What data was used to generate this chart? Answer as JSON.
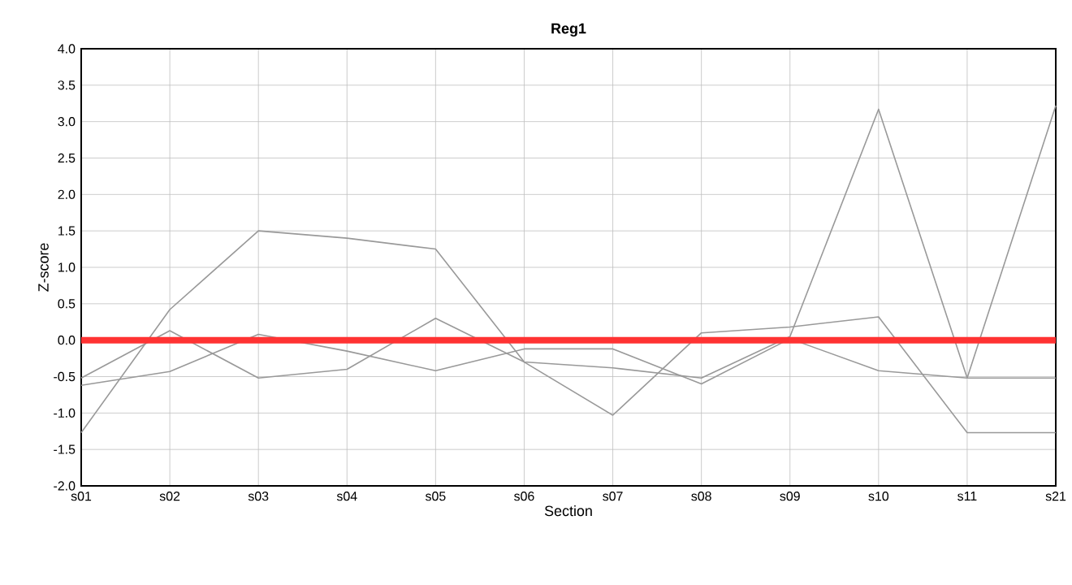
{
  "chart_data": {
    "type": "line",
    "title": "Reg1",
    "xlabel": "Section",
    "ylabel": "Z-score",
    "categories": [
      "s01",
      "s02",
      "s03",
      "s04",
      "s05",
      "s06",
      "s07",
      "s08",
      "s09",
      "s10",
      "s11",
      "s21"
    ],
    "series": [
      {
        "color": "#999999",
        "values": [
          -1.27,
          0.42,
          1.5,
          1.4,
          1.25,
          -0.3,
          -1.03,
          0.1,
          0.18,
          0.32,
          -1.27,
          -1.27
        ]
      },
      {
        "color": "#999999",
        "values": [
          -0.52,
          0.13,
          -0.52,
          -0.4,
          0.3,
          -0.3,
          -0.38,
          -0.52,
          0.05,
          3.17,
          -0.52,
          3.22
        ]
      },
      {
        "color": "#999999",
        "values": [
          -0.62,
          -0.43,
          0.08,
          -0.15,
          -0.42,
          -0.12,
          -0.12,
          -0.6,
          0.02,
          -0.42,
          -0.52,
          -0.52
        ]
      }
    ],
    "ylim": [
      -2,
      4
    ],
    "yticks": [
      {
        "value": -2,
        "label": "-2.0"
      },
      {
        "value": -1.5,
        "label": "-1.5"
      },
      {
        "value": -1,
        "label": "-1.0"
      },
      {
        "value": -0.5,
        "label": "-0.5"
      },
      {
        "value": 0,
        "label": "0.0"
      },
      {
        "value": 0.5,
        "label": "0.5"
      },
      {
        "value": 1,
        "label": "1.0"
      },
      {
        "value": 1.5,
        "label": "1.5"
      },
      {
        "value": 2,
        "label": "2.0"
      },
      {
        "value": 2.5,
        "label": "2.5"
      },
      {
        "value": 3,
        "label": "3.0"
      },
      {
        "value": 3.5,
        "label": "3.5"
      },
      {
        "value": 4,
        "label": "4.0"
      }
    ],
    "ref_lines": [
      {
        "axis": "y",
        "value": 0,
        "color": "#ff3333"
      }
    ],
    "grid": true,
    "marker": "none",
    "line_style": "solid"
  }
}
